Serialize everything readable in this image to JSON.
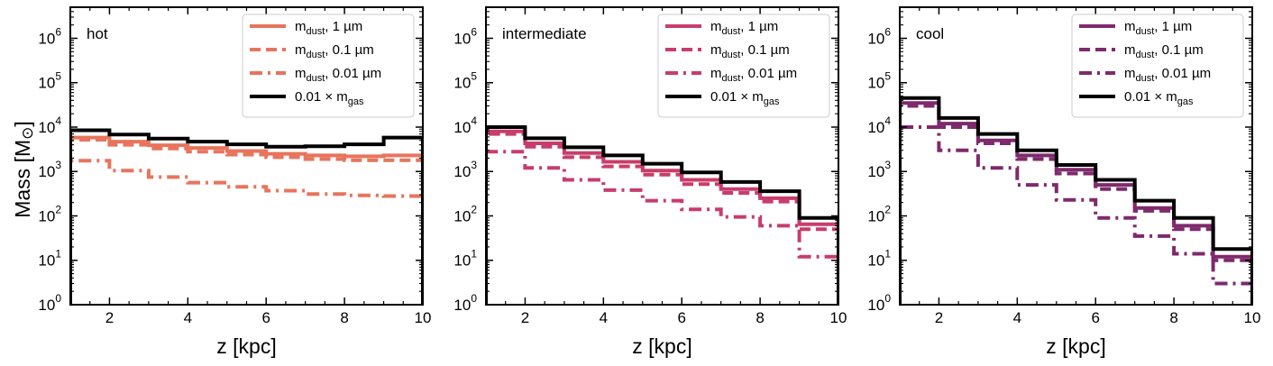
{
  "chart_data": [
    {
      "type": "step",
      "panel_label": "hot",
      "xlabel": "z [kpc]",
      "ylabel": "Mass [M",
      "ylabel_symbol": "⊙",
      "ylabel_close": "]",
      "xlim": [
        1,
        10
      ],
      "ylim_log10": [
        0,
        6.7
      ],
      "x_ticks": [
        "2",
        "4",
        "6",
        "8",
        "10"
      ],
      "y_ticks": [
        {
          "base": "10",
          "exp": "0"
        },
        {
          "base": "10",
          "exp": "1"
        },
        {
          "base": "10",
          "exp": "2"
        },
        {
          "base": "10",
          "exp": "3"
        },
        {
          "base": "10",
          "exp": "4"
        },
        {
          "base": "10",
          "exp": "5"
        },
        {
          "base": "10",
          "exp": "6"
        }
      ],
      "legend_position": "top-right",
      "bin_edges": [
        1,
        2,
        3,
        4,
        5,
        6,
        7,
        8,
        9,
        10
      ],
      "series": [
        {
          "name": "m_dust, 1 µm",
          "label_main": "m",
          "label_sub": "dust",
          "label_rest": ", 1 µm",
          "style": "solid",
          "color": "#E8745C",
          "values": [
            5800,
            4700,
            3900,
            3400,
            2900,
            2500,
            2300,
            2200,
            2300
          ]
        },
        {
          "name": "m_dust, 0.1 µm",
          "label_main": "m",
          "label_sub": "dust",
          "label_rest": ", 0.1 µm",
          "style": "dashed",
          "color": "#E8745C",
          "values": [
            5200,
            4000,
            3300,
            2800,
            2400,
            2100,
            1900,
            1800,
            1800
          ]
        },
        {
          "name": "m_dust, 0.01 µm",
          "label_main": "m",
          "label_sub": "dust",
          "label_rest": ", 0.01 µm",
          "style": "dashdot",
          "color": "#E8745C",
          "values": [
            1750,
            1050,
            750,
            560,
            450,
            370,
            310,
            290,
            280
          ]
        },
        {
          "name": "0.01 × m_gas",
          "label_main": "0.01 × m",
          "label_sub": "gas",
          "label_rest": "",
          "style": "solid",
          "color": "#000000",
          "values": [
            8500,
            6800,
            5500,
            4700,
            4100,
            3600,
            3700,
            4100,
            5800
          ]
        }
      ]
    },
    {
      "type": "step",
      "panel_label": "intermediate",
      "xlabel": "z [kpc]",
      "xlim": [
        1,
        10
      ],
      "ylim_log10": [
        0,
        6.7
      ],
      "x_ticks": [
        "2",
        "4",
        "6",
        "8",
        "10"
      ],
      "legend_position": "top-right",
      "bin_edges": [
        1,
        2,
        3,
        4,
        5,
        6,
        7,
        8,
        9,
        10
      ],
      "series": [
        {
          "name": "m_dust, 1 µm",
          "label_main": "m",
          "label_sub": "dust",
          "label_rest": ", 1 µm",
          "style": "solid",
          "color": "#C83D6A",
          "values": [
            8000,
            4300,
            2600,
            1650,
            1050,
            650,
            400,
            250,
            65
          ]
        },
        {
          "name": "m_dust, 0.1 µm",
          "label_main": "m",
          "label_sub": "dust",
          "label_rest": ", 0.1 µm",
          "style": "dashed",
          "color": "#C83D6A",
          "values": [
            7000,
            3600,
            2100,
            1300,
            850,
            520,
            330,
            210,
            50
          ]
        },
        {
          "name": "m_dust, 0.01 µm",
          "label_main": "m",
          "label_sub": "dust",
          "label_rest": ", 0.01 µm",
          "style": "dashdot",
          "color": "#C83D6A",
          "values": [
            2800,
            1200,
            650,
            380,
            220,
            140,
            95,
            60,
            12
          ]
        },
        {
          "name": "0.01 × m_gas",
          "label_main": "0.01 × m",
          "label_sub": "gas",
          "label_rest": "",
          "style": "solid",
          "color": "#000000",
          "values": [
            10000,
            5600,
            3500,
            2300,
            1500,
            950,
            580,
            360,
            90
          ]
        }
      ]
    },
    {
      "type": "step",
      "panel_label": "cool",
      "xlabel": "z [kpc]",
      "xlim": [
        1,
        10
      ],
      "ylim_log10": [
        0,
        6.7
      ],
      "x_ticks": [
        "2",
        "4",
        "6",
        "8",
        "10"
      ],
      "legend_position": "top-right",
      "bin_edges": [
        1,
        2,
        3,
        4,
        5,
        6,
        7,
        8,
        9,
        10
      ],
      "series": [
        {
          "name": "m_dust, 1 µm",
          "label_main": "m",
          "label_sub": "dust",
          "label_rest": ", 1 µm",
          "style": "solid",
          "color": "#7F2A6C",
          "values": [
            35000,
            12000,
            5000,
            2300,
            1100,
            500,
            150,
            60,
            12
          ]
        },
        {
          "name": "m_dust, 0.1 µm",
          "label_main": "m",
          "label_sub": "dust",
          "label_rest": ", 0.1 µm",
          "style": "dashed",
          "color": "#7F2A6C",
          "values": [
            30000,
            10000,
            4300,
            1900,
            900,
            400,
            130,
            50,
            10
          ]
        },
        {
          "name": "m_dust, 0.01 µm",
          "label_main": "m",
          "label_sub": "dust",
          "label_rest": ", 0.01 µm",
          "style": "dashdot",
          "color": "#7F2A6C",
          "values": [
            10000,
            3000,
            1200,
            500,
            230,
            90,
            35,
            14,
            3
          ]
        },
        {
          "name": "0.01 × m_gas",
          "label_main": "0.01 × m",
          "label_sub": "gas",
          "label_rest": "",
          "style": "solid",
          "color": "#000000",
          "values": [
            45000,
            16000,
            7000,
            3000,
            1400,
            650,
            220,
            90,
            18
          ]
        }
      ]
    }
  ]
}
